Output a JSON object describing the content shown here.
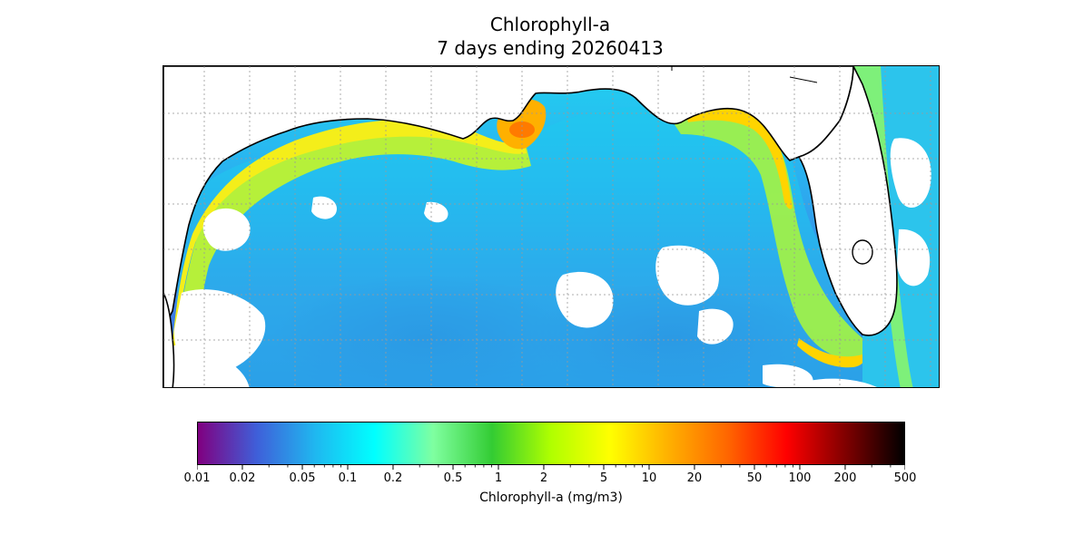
{
  "title": {
    "line1": "Chlorophyll-a",
    "line2": "7 days ending 20260413"
  },
  "colorbar": {
    "label": "Chlorophyll-a (mg/m3)",
    "scale": "log",
    "range": [
      0.01,
      500
    ],
    "ticks": [
      {
        "value": 0.01,
        "label": "0.01"
      },
      {
        "value": 0.02,
        "label": "0.02"
      },
      {
        "value": 0.05,
        "label": "0.05"
      },
      {
        "value": 0.1,
        "label": "0.1"
      },
      {
        "value": 0.2,
        "label": "0.2"
      },
      {
        "value": 0.5,
        "label": "0.5"
      },
      {
        "value": 1,
        "label": "1"
      },
      {
        "value": 2,
        "label": "2"
      },
      {
        "value": 5,
        "label": "5"
      },
      {
        "value": 10,
        "label": "10"
      },
      {
        "value": 20,
        "label": "20"
      },
      {
        "value": 50,
        "label": "50"
      },
      {
        "value": 100,
        "label": "100"
      },
      {
        "value": 200,
        "label": "200"
      },
      {
        "value": 500,
        "label": "500"
      }
    ],
    "colormap": [
      "#800080",
      "#3f5fd9",
      "#1fb8f0",
      "#00ffff",
      "#7fffa0",
      "#33cc33",
      "#b0ff00",
      "#ffff00",
      "#ffb000",
      "#ff6600",
      "#ff0000",
      "#800000",
      "#000000"
    ]
  },
  "map": {
    "region": "Gulf of Mexico",
    "land_color": "#ffffff",
    "coast_color": "#000000",
    "gridlines": "dotted"
  }
}
